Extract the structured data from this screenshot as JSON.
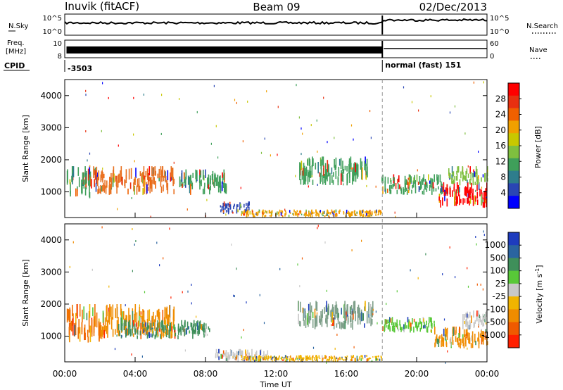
{
  "header": {
    "station": "Inuvik (fitACF)",
    "beam": "Beam 09",
    "date": "02/Dec/2013"
  },
  "status_panels": {
    "nsky_label": "N.Sky",
    "nsky_scale_top": "10^5",
    "nsky_scale_bottom": "10^0",
    "nsearch_label": "N.Search",
    "freq_label_line1": "Freq.",
    "freq_label_line2": "[MHz]",
    "freq_tick_top_left": "10",
    "freq_tick_bottom_left": "8",
    "nave_label": "Nave",
    "nave_tick_top": "60",
    "nave_tick_bottom": "0",
    "cpid_label": "CPID",
    "cpid_first": "-3503",
    "cpid_second": "normal (fast) 151",
    "mode_change_hour": 18.05
  },
  "x_axis": {
    "label": "Time UT",
    "ticks": [
      "00:00",
      "04:00",
      "08:00",
      "12:00",
      "16:00",
      "20:00",
      "00:00"
    ],
    "range_hours": [
      0,
      24
    ]
  },
  "chart_data": [
    {
      "type": "heatmap",
      "panel": "power",
      "ylabel": "Slant Range [km]",
      "yticks": [
        "1000",
        "2000",
        "3000",
        "4000"
      ],
      "ylim": [
        200,
        4500
      ],
      "xlim_hours": [
        0,
        24
      ],
      "colorbar": {
        "label": "Power [dB]",
        "ticks": [
          "4",
          "8",
          "12",
          "16",
          "20",
          "24",
          "28"
        ],
        "colors": [
          "#0000ff",
          "#2a46b4",
          "#2e7d8c",
          "#3f9f5a",
          "#7fbf3f",
          "#c8c800",
          "#f0a000",
          "#f06000",
          "#e83010",
          "#ff0000"
        ]
      },
      "regions": [
        {
          "t0": 0.1,
          "t1": 1.5,
          "r0": 800,
          "r1": 1800,
          "color": "#3f9f5a"
        },
        {
          "t0": 1.6,
          "t1": 6.2,
          "r0": 900,
          "r1": 1800,
          "color": "#e87020"
        },
        {
          "t0": 6.5,
          "t1": 9.2,
          "r0": 900,
          "r1": 1700,
          "color": "#3f9f5a"
        },
        {
          "t0": 8.8,
          "t1": 10.5,
          "r0": 300,
          "r1": 700,
          "color": "#2a46b4"
        },
        {
          "t0": 10.0,
          "t1": 18.0,
          "r0": 200,
          "r1": 450,
          "color": "#f0a000"
        },
        {
          "t0": 13.2,
          "t1": 17.3,
          "r0": 1200,
          "r1": 2100,
          "color": "#3f9f5a"
        },
        {
          "t0": 18.0,
          "t1": 21.5,
          "r0": 900,
          "r1": 1550,
          "color": "#3f9f5a"
        },
        {
          "t0": 21.2,
          "t1": 24.0,
          "r0": 500,
          "r1": 1300,
          "color": "#ff0000"
        },
        {
          "t0": 21.8,
          "t1": 24.0,
          "r0": 1200,
          "r1": 1800,
          "color": "#7fbf3f"
        }
      ]
    },
    {
      "type": "heatmap",
      "panel": "velocity",
      "ylabel": "Slant Range [km]",
      "yticks": [
        "1000",
        "2000",
        "3000",
        "4000"
      ],
      "ylim": [
        200,
        4500
      ],
      "xlim_hours": [
        0,
        24
      ],
      "colorbar": {
        "label": "Velocity [m s^-1]",
        "ticks": [
          "1000",
          "500",
          "100",
          "25",
          "-25",
          "-100",
          "-500",
          "-1000"
        ],
        "colors": [
          "#1e3cbe",
          "#2a64a0",
          "#3f8f5a",
          "#58c838",
          "#c8c8c8",
          "#f0b400",
          "#f08c00",
          "#f05a00",
          "#ff2000"
        ]
      },
      "regions": [
        {
          "t0": 0.1,
          "t1": 2.0,
          "r0": 800,
          "r1": 2000,
          "color": "#f07000"
        },
        {
          "t0": 2.0,
          "t1": 6.2,
          "r0": 900,
          "r1": 2000,
          "color": "#f08c00"
        },
        {
          "t0": 3.0,
          "t1": 8.2,
          "r0": 900,
          "r1": 1500,
          "color": "#3f8f5a"
        },
        {
          "t0": 8.5,
          "t1": 11.5,
          "r0": 200,
          "r1": 600,
          "color": "#c8c8c8"
        },
        {
          "t0": 10.0,
          "t1": 18.0,
          "r0": 200,
          "r1": 420,
          "color": "#f0b400"
        },
        {
          "t0": 13.2,
          "t1": 17.5,
          "r0": 1200,
          "r1": 2100,
          "color": "#7fa08a"
        },
        {
          "t0": 18.0,
          "t1": 21.0,
          "r0": 1100,
          "r1": 1600,
          "color": "#58c838"
        },
        {
          "t0": 21.0,
          "t1": 24.0,
          "r0": 600,
          "r1": 1300,
          "color": "#f08c00"
        },
        {
          "t0": 22.5,
          "t1": 24.0,
          "r0": 1200,
          "r1": 1800,
          "color": "#c8c8c8"
        }
      ]
    }
  ]
}
